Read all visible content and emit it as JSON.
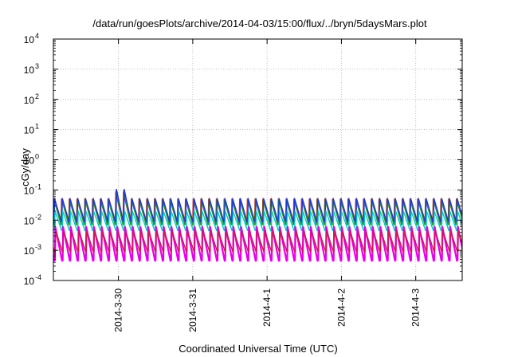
{
  "chart_data": {
    "type": "line",
    "title": "/data/run/goesPlots/archive/2014-04-03/15:00/flux/../bryn/5daysMars.plot",
    "xlabel": "Coordinated Universal Time (UTC)",
    "ylabel": "cGy/day",
    "yscale": "log",
    "ylim": [
      0.0001,
      10000
    ],
    "y_ticks": [
      {
        "value": 0.0001,
        "base": "10",
        "exp": "-4"
      },
      {
        "value": 0.001,
        "base": "10",
        "exp": "-3"
      },
      {
        "value": 0.01,
        "base": "10",
        "exp": "-2"
      },
      {
        "value": 0.1,
        "base": "10",
        "exp": "-1"
      },
      {
        "value": 1,
        "base": "10",
        "exp": "0"
      },
      {
        "value": 10,
        "base": "10",
        "exp": "1"
      },
      {
        "value": 100,
        "base": "10",
        "exp": "2"
      },
      {
        "value": 1000,
        "base": "10",
        "exp": "3"
      },
      {
        "value": 10000,
        "base": "10",
        "exp": "4"
      }
    ],
    "xlim": [
      "2014-03-29 03:00",
      "2014-04-03 15:00"
    ],
    "x_ticks": [
      {
        "value": "2014-03-30 00:00",
        "label": "2014-3-30"
      },
      {
        "value": "2014-03-31 00:00",
        "label": "2014-3-31"
      },
      {
        "value": "2014-04-01 00:00",
        "label": "2014-4-1"
      },
      {
        "value": "2014-04-02 00:00",
        "label": "2014-4-2"
      },
      {
        "value": "2014-04-03 00:00",
        "label": "2014-4-3"
      }
    ],
    "grid": true,
    "legend": "none",
    "pattern": {
      "cycle_hours": 2.5,
      "spike_event": {
        "start": "2014-03-29 23:00",
        "end": "2014-03-30 03:00",
        "peak": 0.1
      }
    },
    "series": [
      {
        "color": "#e0101a",
        "peak": 0.05,
        "trough": 0.0085
      },
      {
        "color": "#1a9d2a",
        "peak": 0.048,
        "trough": 0.007
      },
      {
        "color": "#2233dd",
        "peak": 0.052,
        "trough": 0.009
      },
      {
        "color": "#00c8c8",
        "peak": 0.02,
        "trough": 0.0045
      },
      {
        "color": "#e800e8",
        "peak": 0.006,
        "trough": 0.00045
      },
      {
        "color": "#d01850",
        "peak": 0.0045,
        "trough": 0.0009
      }
    ]
  }
}
